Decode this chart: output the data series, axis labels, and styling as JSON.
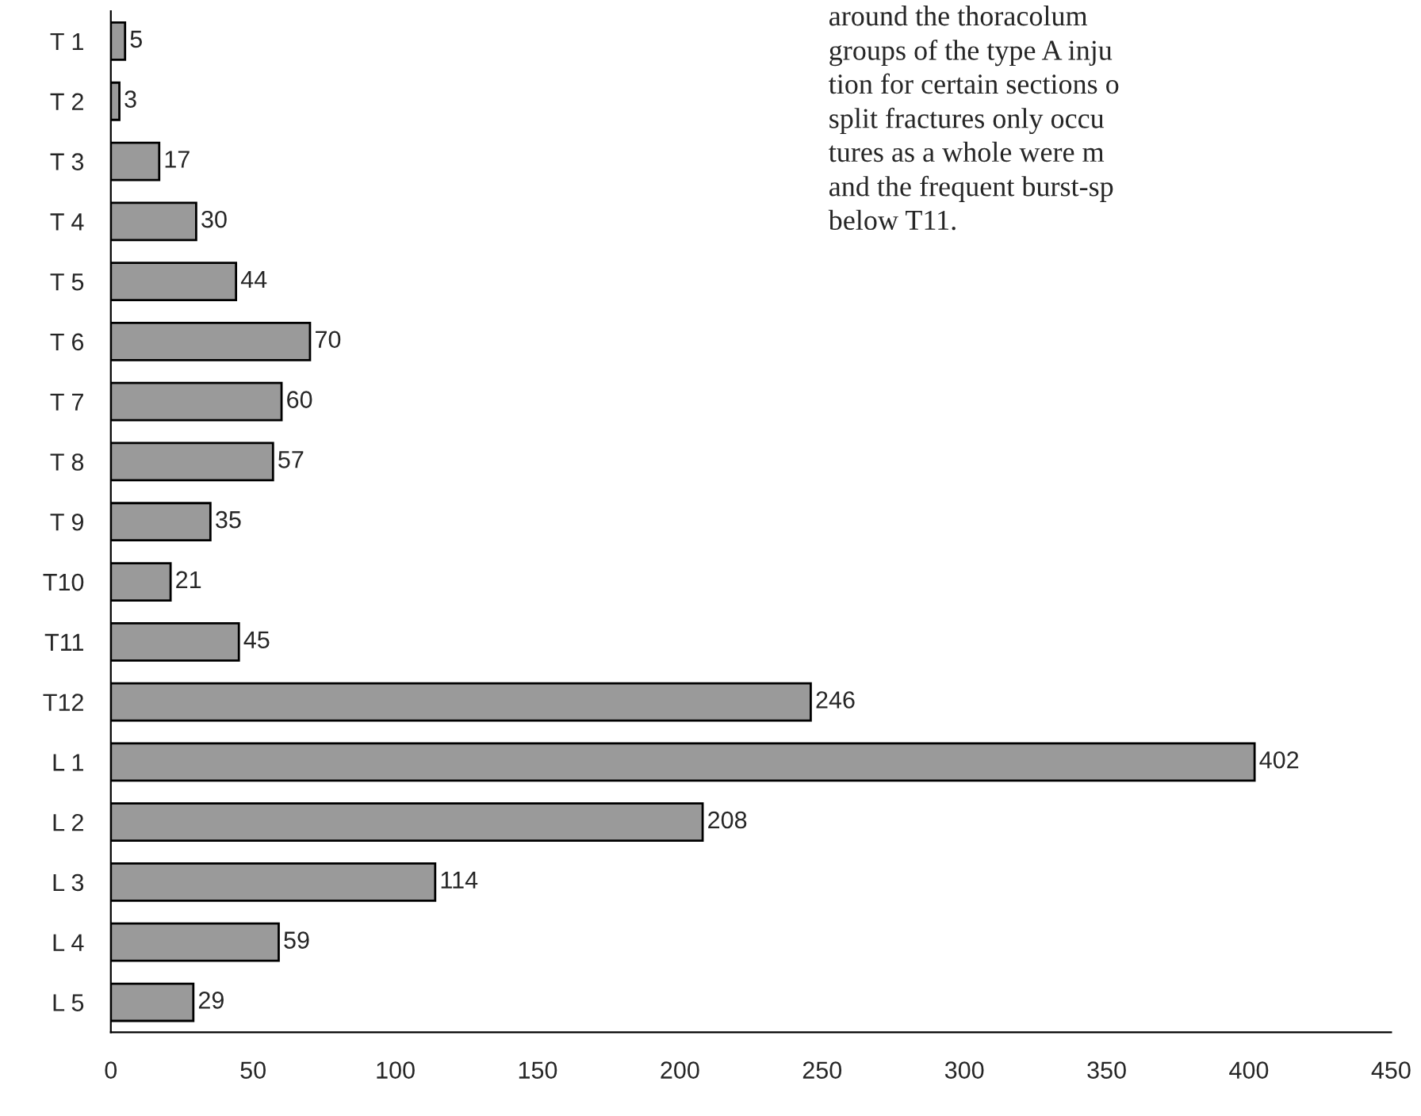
{
  "chart_data": {
    "type": "bar",
    "orientation": "horizontal",
    "categories": [
      "T 1",
      "T 2",
      "T 3",
      "T 4",
      "T 5",
      "T 6",
      "T 7",
      "T 8",
      "T 9",
      "T10",
      "T11",
      "T12",
      "L 1",
      "L 2",
      "L 3",
      "L 4",
      "L 5"
    ],
    "values": [
      5,
      3,
      17,
      30,
      44,
      70,
      60,
      57,
      35,
      21,
      45,
      246,
      402,
      208,
      114,
      59,
      29
    ],
    "color": "#9a9a9a",
    "data_labels": true,
    "grid": false,
    "xlim": [
      0,
      450
    ],
    "xticks": [
      0,
      50,
      100,
      150,
      200,
      250,
      300,
      350,
      400,
      450
    ],
    "annotations": [
      "around the thoracolum",
      "groups of the type A inju",
      "tion for certain sections o",
      "split fractures only occu",
      "tures as a whole were m",
      "and the frequent burst-sp",
      "below T11."
    ]
  }
}
